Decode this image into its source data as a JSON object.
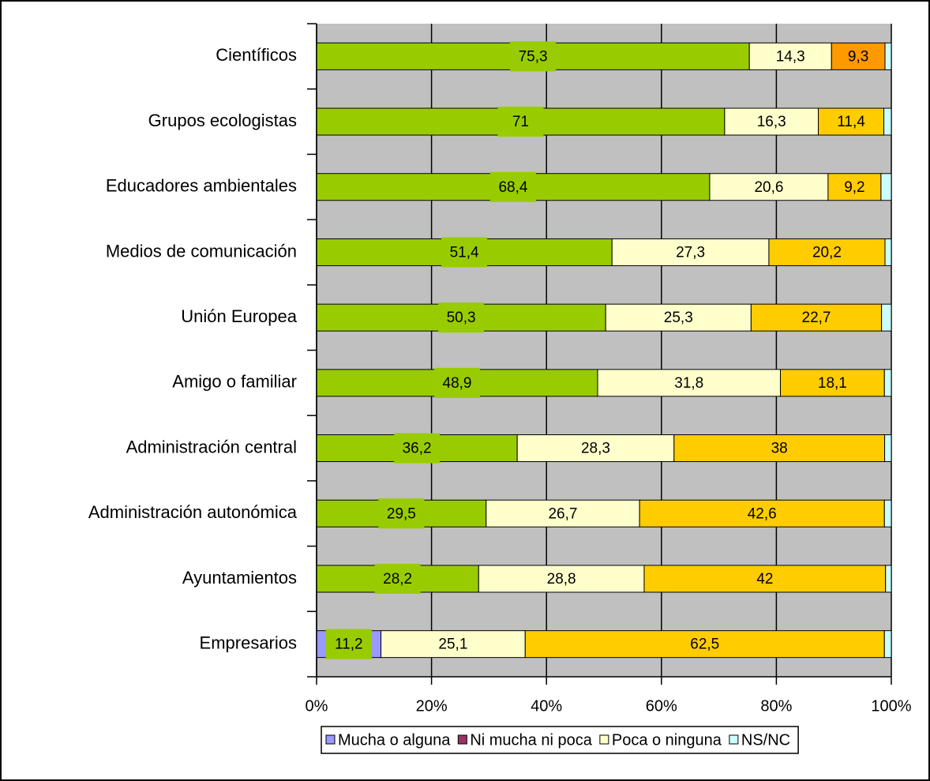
{
  "chart_data": {
    "type": "bar",
    "orientation": "horizontal",
    "stack": "percent",
    "categories": [
      "Científicos",
      "Grupos ecologistas",
      "Educadores ambientales",
      "Medios de comunicación",
      "Unión Europea",
      "Amigo o familiar",
      "Administración central",
      "Administración autonómica",
      "Ayuntamientos",
      "Empresarios"
    ],
    "series": [
      {
        "name": "Mucha o alguna",
        "color": "#9999FF",
        "colors": [
          "#99CC00",
          "#99CC00",
          "#99CC00",
          "#99CC00",
          "#99CC00",
          "#99CC00",
          "#99CC00",
          "#99CC00",
          "#99CC00",
          "#9999FF"
        ],
        "label_background": "#99CC00",
        "values": [
          75.3,
          71,
          68.4,
          51.4,
          50.3,
          48.9,
          36.2,
          29.5,
          28.2,
          11.2
        ],
        "value_labels": [
          "75,3",
          "71",
          "68,4",
          "51,4",
          "50,3",
          "48,9",
          "36,2",
          "29,5",
          "28,2",
          "11,2"
        ]
      },
      {
        "name": "Ni mucha ni poca",
        "color": "#993366",
        "colors": [
          "#FFFFCC",
          "#FFFFCC",
          "#FFFFCC",
          "#FFFFCC",
          "#FFFFCC",
          "#FFFFCC",
          "#FFFFCC",
          "#FFFFCC",
          "#FFFFCC",
          "#FFFFCC"
        ],
        "values": [
          14.3,
          16.3,
          20.6,
          27.3,
          25.3,
          31.8,
          28.3,
          26.7,
          28.8,
          25.1
        ],
        "value_labels": [
          "14,3",
          "16,3",
          "20,6",
          "27,3",
          "25,3",
          "31,8",
          "28,3",
          "26,7",
          "28,8",
          "25,1"
        ]
      },
      {
        "name": "Poca o ninguna",
        "color": "#FFFFCC",
        "colors": [
          "#FF9900",
          "#FFCC00",
          "#FFCC00",
          "#FFCC00",
          "#FFCC00",
          "#FFCC00",
          "#FFCC00",
          "#FFCC00",
          "#FFCC00",
          "#FFCC00"
        ],
        "values": [
          9.3,
          11.4,
          9.2,
          20.2,
          22.7,
          18.1,
          38,
          42.6,
          42,
          62.5
        ],
        "value_labels": [
          "9,3",
          "11,4",
          "9,2",
          "20,2",
          "22,7",
          "18,1",
          "38",
          "42,6",
          "42",
          "62,5"
        ]
      },
      {
        "name": "NS/NC",
        "color": "#CCFFFF",
        "colors": [
          "#CCFFFF",
          "#CCFFFF",
          "#CCFFFF",
          "#CCFFFF",
          "#CCFFFF",
          "#CCFFFF",
          "#CCFFFF",
          "#CCFFFF",
          "#CCFFFF",
          "#CCFFFF"
        ],
        "values": [
          1.1,
          1.3,
          1.8,
          1.1,
          1.7,
          1.2,
          1.2,
          1.2,
          1,
          1.2
        ]
      }
    ],
    "xlim": [
      0,
      100
    ],
    "xticks": [
      {
        "value": 0,
        "label": "0%"
      },
      {
        "value": 20,
        "label": "20%"
      },
      {
        "value": 40,
        "label": "40%"
      },
      {
        "value": 60,
        "label": "60%"
      },
      {
        "value": 80,
        "label": "80%"
      },
      {
        "value": 100,
        "label": "100%"
      }
    ],
    "grid": true,
    "plot_background": "#C0C0C0",
    "legend": "bottom"
  }
}
